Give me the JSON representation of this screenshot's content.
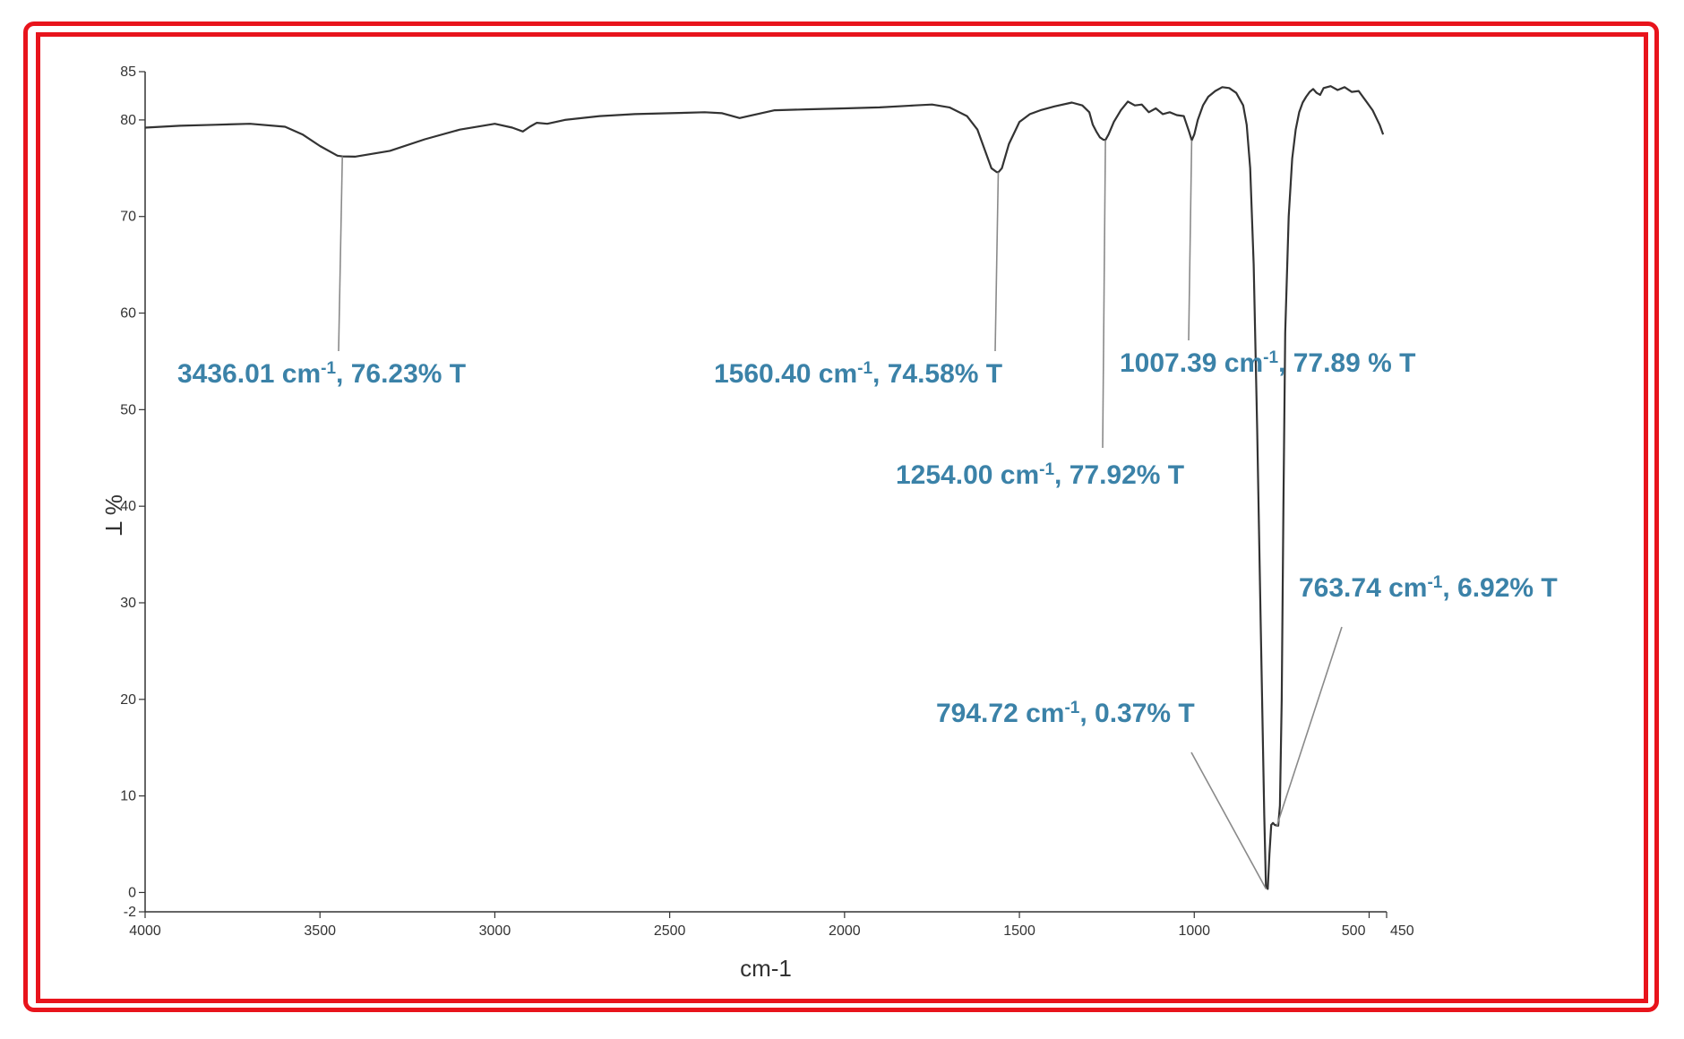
{
  "chart_data": {
    "type": "line",
    "title": "",
    "xlabel": "cm-1",
    "ylabel": "% T",
    "xlim": [
      4000,
      450
    ],
    "ylim": [
      -2,
      85
    ],
    "x_ticks": [
      {
        "value": 4000,
        "label": "4000"
      },
      {
        "value": 3500,
        "label": "3500"
      },
      {
        "value": 3000,
        "label": "3000"
      },
      {
        "value": 2500,
        "label": "2500"
      },
      {
        "value": 2000,
        "label": "2000"
      },
      {
        "value": 1500,
        "label": "1500"
      },
      {
        "value": 1000,
        "label": "1000"
      },
      {
        "value": 500,
        "label": "500"
      },
      {
        "value": 450,
        "label": "450"
      }
    ],
    "y_ticks": [
      {
        "value": -2,
        "label": "-2"
      },
      {
        "value": 0,
        "label": "0"
      },
      {
        "value": 10,
        "label": "10"
      },
      {
        "value": 20,
        "label": "20"
      },
      {
        "value": 30,
        "label": "30"
      },
      {
        "value": 40,
        "label": "40"
      },
      {
        "value": 50,
        "label": "50"
      },
      {
        "value": 60,
        "label": "60"
      },
      {
        "value": 70,
        "label": "70"
      },
      {
        "value": 80,
        "label": "80"
      },
      {
        "value": 85,
        "label": "85"
      }
    ],
    "grid": false,
    "line_color": "#333333",
    "annotation_color": "#3b82a8",
    "frame_color": "#e8141c",
    "series": [
      {
        "x": [
          4000,
          3900,
          3800,
          3700,
          3600,
          3550,
          3500,
          3450,
          3436,
          3400,
          3300,
          3200,
          3100,
          3000,
          2950,
          2920,
          2900,
          2880,
          2850,
          2800,
          2700,
          2600,
          2500,
          2400,
          2350,
          2300,
          2250,
          2200,
          2100,
          2000,
          1900,
          1800,
          1750,
          1700,
          1650,
          1620,
          1600,
          1580,
          1565,
          1560,
          1550,
          1530,
          1500,
          1470,
          1440,
          1400,
          1350,
          1320,
          1300,
          1290,
          1280,
          1270,
          1260,
          1254,
          1245,
          1230,
          1210,
          1190,
          1170,
          1150,
          1130,
          1110,
          1090,
          1070,
          1050,
          1030,
          1015,
          1007,
          1000,
          990,
          975,
          960,
          940,
          920,
          900,
          880,
          860,
          850,
          840,
          830,
          820,
          810,
          800,
          795,
          790,
          785,
          780,
          775,
          770,
          765,
          760,
          755,
          750,
          745,
          740,
          730,
          720,
          710,
          700,
          690,
          680,
          670,
          660,
          650,
          640,
          630,
          610,
          590,
          570,
          550,
          530,
          510,
          490,
          470,
          460
        ],
        "y": [
          79.2,
          79.4,
          79.5,
          79.6,
          79.3,
          78.5,
          77.3,
          76.3,
          76.23,
          76.2,
          76.8,
          78.0,
          79.0,
          79.6,
          79.2,
          78.8,
          79.3,
          79.7,
          79.6,
          80.0,
          80.4,
          80.6,
          80.7,
          80.8,
          80.7,
          80.2,
          80.6,
          81.0,
          81.1,
          81.2,
          81.3,
          81.5,
          81.6,
          81.3,
          80.4,
          79.0,
          77.0,
          75.0,
          74.6,
          74.58,
          75.0,
          77.5,
          79.8,
          80.6,
          81.0,
          81.4,
          81.8,
          81.5,
          80.8,
          79.5,
          78.8,
          78.2,
          77.95,
          77.92,
          78.5,
          79.8,
          81.0,
          81.9,
          81.5,
          81.6,
          80.8,
          81.2,
          80.6,
          80.8,
          80.5,
          80.4,
          78.8,
          77.89,
          78.5,
          80.0,
          81.5,
          82.4,
          83.0,
          83.4,
          83.3,
          82.8,
          81.5,
          79.5,
          75.0,
          65.0,
          48.0,
          28.0,
          8.0,
          0.6,
          0.37,
          4.0,
          7.0,
          7.2,
          7.0,
          6.95,
          6.92,
          9.0,
          20.0,
          40.0,
          58.0,
          70.0,
          76.0,
          79.0,
          80.8,
          81.8,
          82.4,
          82.9,
          83.2,
          82.8,
          82.6,
          83.3,
          83.5,
          83.1,
          83.4,
          82.9,
          83.0,
          82.0,
          81.0,
          79.5,
          78.5
        ]
      }
    ],
    "annotations": [
      {
        "wavenumber": "3436.01",
        "transmittance": "76.23% T",
        "peak_x": 3436.01,
        "peak_y": 76.23
      },
      {
        "wavenumber": "1560.40",
        "transmittance": "74.58% T",
        "peak_x": 1560.4,
        "peak_y": 74.58
      },
      {
        "wavenumber": "1007.39",
        "transmittance": "77.89 % T",
        "peak_x": 1007.39,
        "peak_y": 77.89
      },
      {
        "wavenumber": "1254.00",
        "transmittance": "77.92% T",
        "peak_x": 1254.0,
        "peak_y": 77.92
      },
      {
        "wavenumber": "763.74",
        "transmittance": "6.92% T",
        "peak_x": 763.74,
        "peak_y": 6.92
      },
      {
        "wavenumber": "794.72",
        "transmittance": "0.37% T",
        "peak_x": 794.72,
        "peak_y": 0.37
      }
    ],
    "unit_base": "cm",
    "unit_exp": "-1"
  }
}
